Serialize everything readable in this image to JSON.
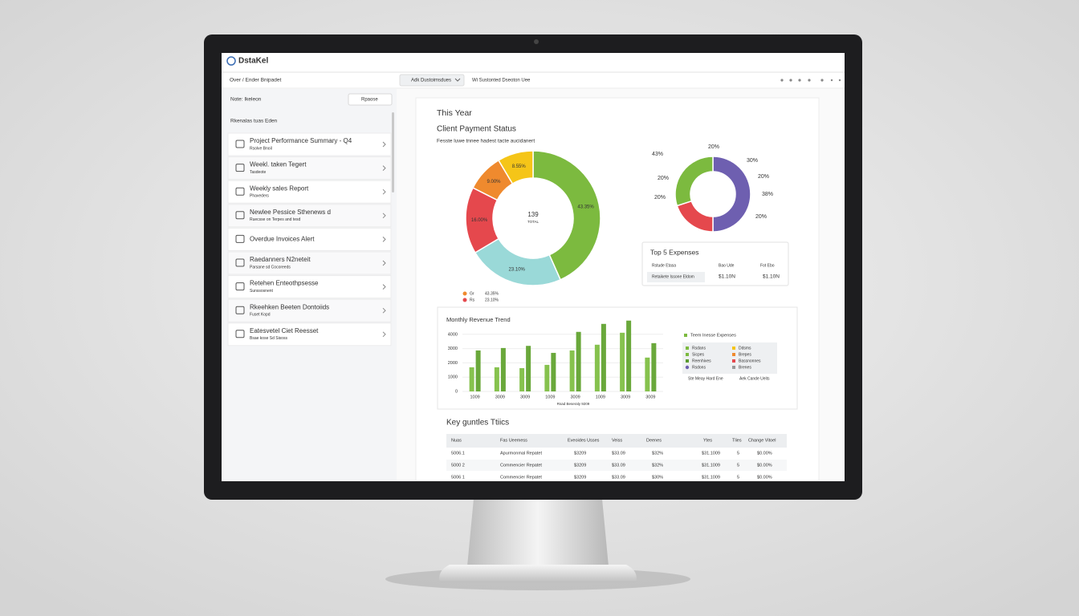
{
  "app": {
    "name": "DstaKel"
  },
  "breadcrumb": "Over / Ender Bnipadet",
  "toolbar": {
    "dropdown": "Adk Dustoimsdues",
    "label": "Wi Sustonted Dseoton Uee"
  },
  "sidebar": {
    "filter": "Note: Ikeleon",
    "sort": "Rpaose",
    "heading": "Rkenalas tuas Eden",
    "items": [
      {
        "title": "Project Performance Summary - Q4",
        "subtitle": "Rsolve Bnoil"
      },
      {
        "title": "Weekl. taken Tegert",
        "subtitle": "Tasdeote"
      },
      {
        "title": "Weekly sales Report",
        "subtitle": "Phaveders"
      },
      {
        "title": "Newlee Pessice Sthenews d",
        "subtitle": "Ruecsse on Terpes and tesd"
      },
      {
        "title": "Overdue Invoices Alert"
      },
      {
        "title": "Raedanners N2neteit",
        "subtitle": "Parsane sd Cocoreeds"
      },
      {
        "title": "Retehen Enteothpsesse",
        "subtitle": "Sunssosnent"
      },
      {
        "title": "Rkeehken Beeten Dontoiids",
        "subtitle": "Fuset Kopd"
      },
      {
        "title": "Eatesvetel Ciet Reesset",
        "subtitle": "Bsae kose Sd Sisoss"
      }
    ]
  },
  "panel": {
    "period": "This Year",
    "title": "Client Payment Status",
    "subtitle": "Fesste luwe tnnee hadest tacte aucidanert"
  },
  "donut_main": {
    "type": "donut",
    "center": "139",
    "center_sub": "TOTAL",
    "values": [
      43.35,
      23.1,
      16.0,
      9.0,
      8.55
    ],
    "value_labels": [
      "43.35%",
      "23.10%",
      "16.00%",
      "9.00%",
      "8.55%"
    ],
    "colors": [
      "#7cba3f",
      "#9ad9d8",
      "#e5484d",
      "#ef8a2e",
      "#f5c518"
    ],
    "legend": [
      {
        "key": "Gr",
        "label": "43.35%",
        "color": "#ef8a2e"
      },
      {
        "key": "Rs",
        "label": "23.10%",
        "color": "#e5484d"
      }
    ]
  },
  "donut_small": {
    "type": "donut",
    "values": [
      50,
      20,
      30
    ],
    "colors": [
      "#6e5fb0",
      "#e5484d",
      "#7cba3f"
    ],
    "callouts": [
      "20%",
      "43%",
      "30%",
      "20%",
      "20%",
      "20%",
      "38%",
      "20%"
    ]
  },
  "expenses": {
    "title": "Top 5 Expenses",
    "header": [
      "Rstude Etasa",
      "Bao Ude",
      "Fot Ebo"
    ],
    "row": [
      "Retaikete Issone Eldom",
      "$1.10N",
      "$1.10N"
    ]
  },
  "bar_chart": {
    "type": "bar",
    "title": "Monthly Revenue Trend",
    "x_label": "Rsad Beseraly 9209",
    "categories": [
      "1009",
      "3009",
      "3009",
      "1009",
      "3009",
      "1009",
      "3009",
      "3009"
    ],
    "series": [
      {
        "color": "#86c24e",
        "values": [
          1690,
          1690,
          1630,
          1860,
          2870,
          3270,
          4110,
          2370
        ]
      },
      {
        "color": "#6aa83b",
        "values": [
          2870,
          3040,
          3190,
          2700,
          4170,
          4730,
          4960,
          3380
        ]
      }
    ],
    "ylim": [
      0,
      5000
    ],
    "yticks": [
      0,
      1000,
      2000,
      3000,
      4000
    ],
    "legend": {
      "title": "Teem Inesse Expenses",
      "items": [
        {
          "label": "Rsdans",
          "color": "#7cba3f"
        },
        {
          "label": "Ddsms",
          "color": "#f5c518"
        },
        {
          "label": "Sicpes",
          "color": "#7cba3f"
        },
        {
          "label": "Brepes",
          "color": "#ef8a2e"
        },
        {
          "label": "Reenhives",
          "color": "#5a9a30"
        },
        {
          "label": "Bassnonnes",
          "color": "#e5484d"
        },
        {
          "label": "Rsdons",
          "color": "#6e5fb0"
        },
        {
          "label": "Brenes",
          "color": "#999999"
        }
      ],
      "footer": [
        "Ste Meay Hard Ene",
        "Aek Cande Ueits"
      ]
    }
  },
  "table": {
    "title": "Key guntles Ttiics",
    "columns": [
      "Nuas",
      "Fas Ueemess",
      "Eveoides Usses",
      "Veiss",
      "Deenes",
      "Ytes",
      "Tlies",
      "Change Vitoel"
    ],
    "rows": [
      [
        "5006.1",
        "Apurmonmal Repatet",
        "$3209",
        "$33.09",
        "$32%",
        "$31.1009",
        "5",
        "$0.00%"
      ],
      [
        "5000 2",
        "Commencier Repatet",
        "$3209",
        "$33.09",
        "$32%",
        "$31.1009",
        "5",
        "$0.00%"
      ],
      [
        "5006 1",
        "Commencier Repatet",
        "$3209",
        "$33.09",
        "$30%",
        "$31.1009",
        "5",
        "$0.00%"
      ]
    ]
  }
}
